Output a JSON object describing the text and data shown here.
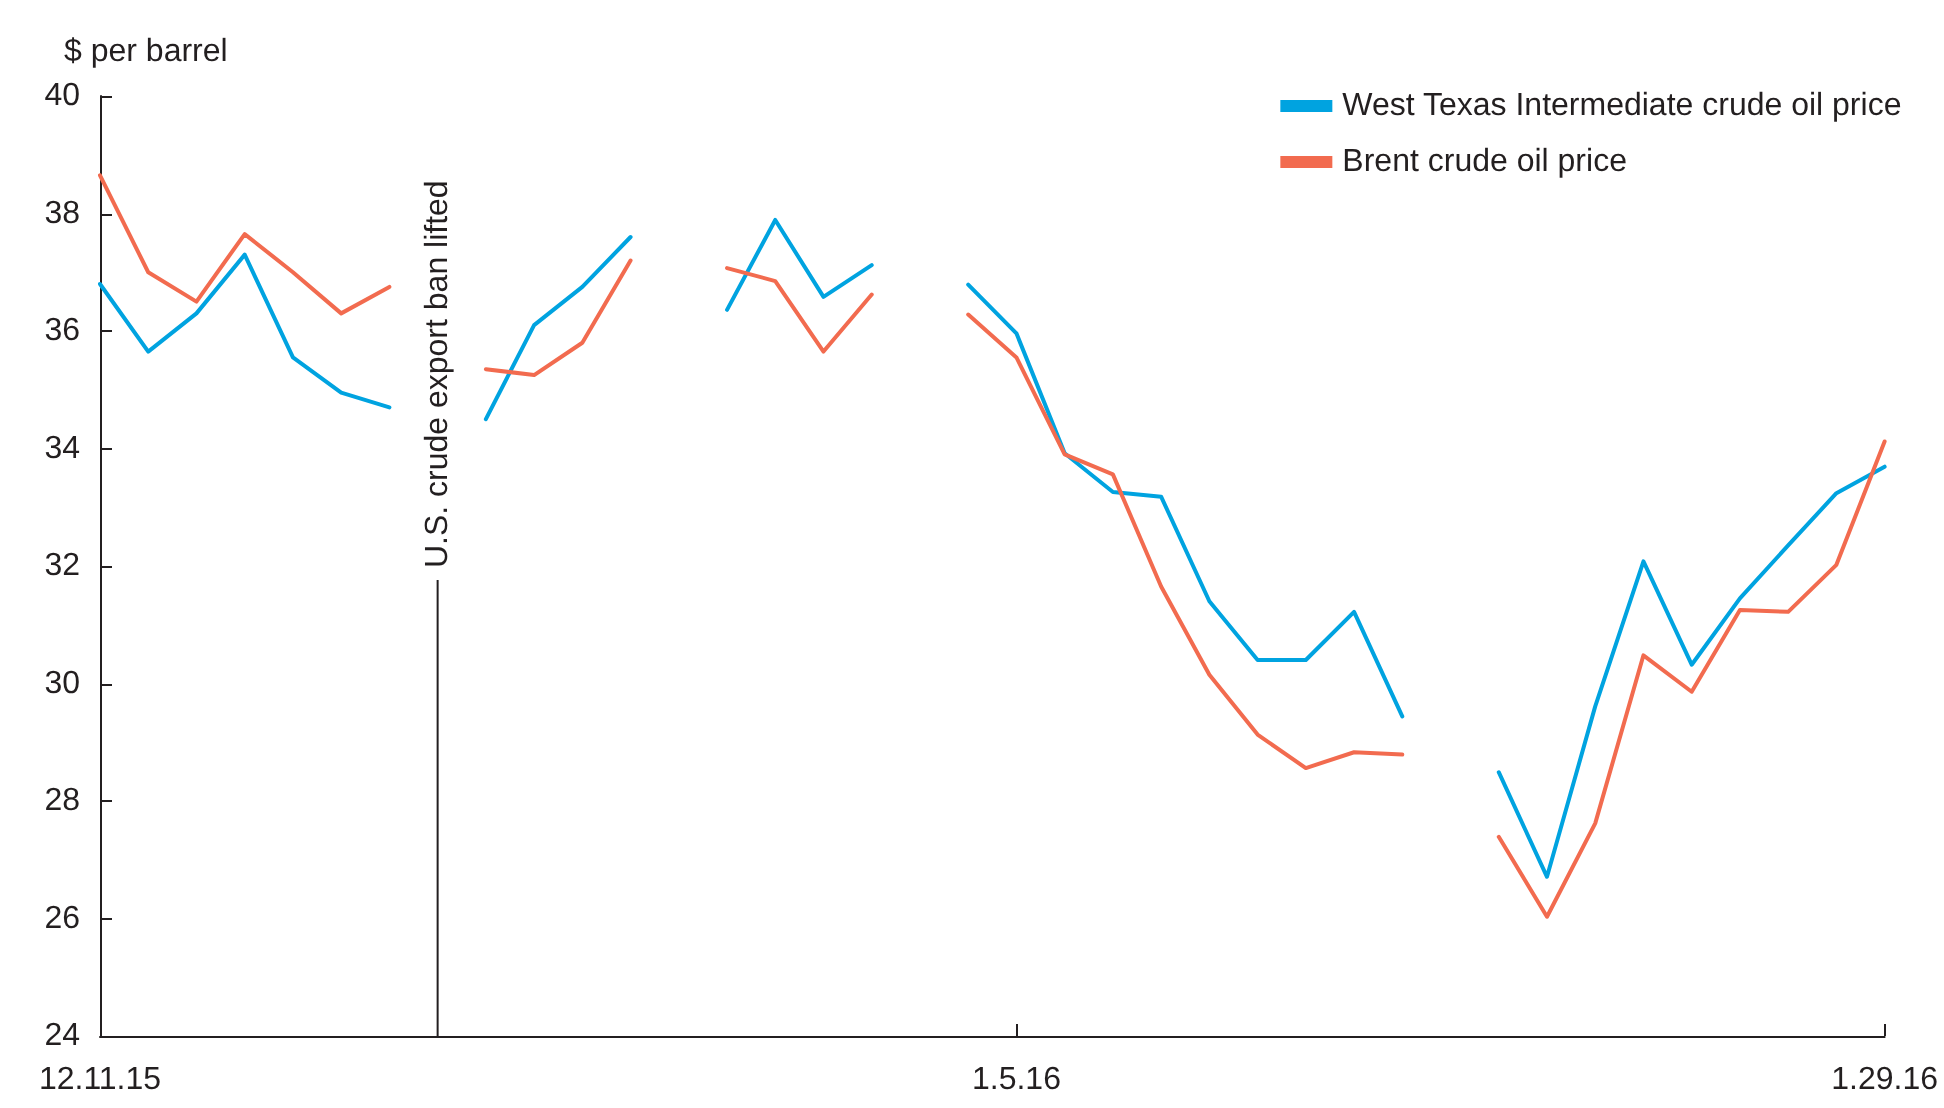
{
  "chart_data": {
    "type": "line",
    "ylabel": "$ per barrel",
    "categories": [
      "12.11.15",
      null,
      null,
      null,
      null,
      null,
      null,
      null,
      null,
      null,
      null,
      null,
      null,
      null,
      null,
      null,
      null,
      null,
      null,
      "1.5.16",
      null,
      null,
      null,
      null,
      null,
      null,
      null,
      null,
      null,
      null,
      null,
      null,
      null,
      null,
      null,
      null,
      null,
      "1.29.16"
    ],
    "series": [
      {
        "name": "West Texas Intermediate crude oil price",
        "color": "#00a3e0",
        "values": [
          36.8,
          35.65,
          36.3,
          37.3,
          35.55,
          34.95,
          34.7,
          null,
          34.5,
          36.1,
          36.75,
          37.6,
          null,
          36.36,
          37.89,
          36.58,
          37.12,
          null,
          36.79,
          35.96,
          33.92,
          33.26,
          33.18,
          31.4,
          30.4,
          30.4,
          31.22,
          29.44,
          null,
          28.49,
          26.71,
          29.61,
          32.08,
          30.32,
          31.45,
          32.35,
          33.24,
          33.69
        ]
      },
      {
        "name": "Brent crude oil price",
        "color": "#f26b4f",
        "values": [
          38.65,
          37.0,
          36.5,
          37.65,
          37.0,
          36.3,
          36.75,
          null,
          35.35,
          35.25,
          35.8,
          37.2,
          null,
          37.07,
          36.85,
          35.65,
          36.62,
          null,
          36.28,
          35.55,
          33.9,
          33.56,
          31.65,
          30.15,
          29.13,
          28.56,
          28.83,
          28.79,
          null,
          27.39,
          26.03,
          27.62,
          30.48,
          29.86,
          31.25,
          31.22,
          32.02,
          34.12
        ]
      }
    ],
    "ylim": [
      24,
      40
    ],
    "yticks": [
      24,
      26,
      28,
      30,
      32,
      34,
      36,
      38,
      40
    ],
    "grid": false,
    "legend": "top right",
    "marker": "none",
    "line_style": "solid",
    "annotations": [
      "U.S. crude export ban lifted"
    ]
  }
}
